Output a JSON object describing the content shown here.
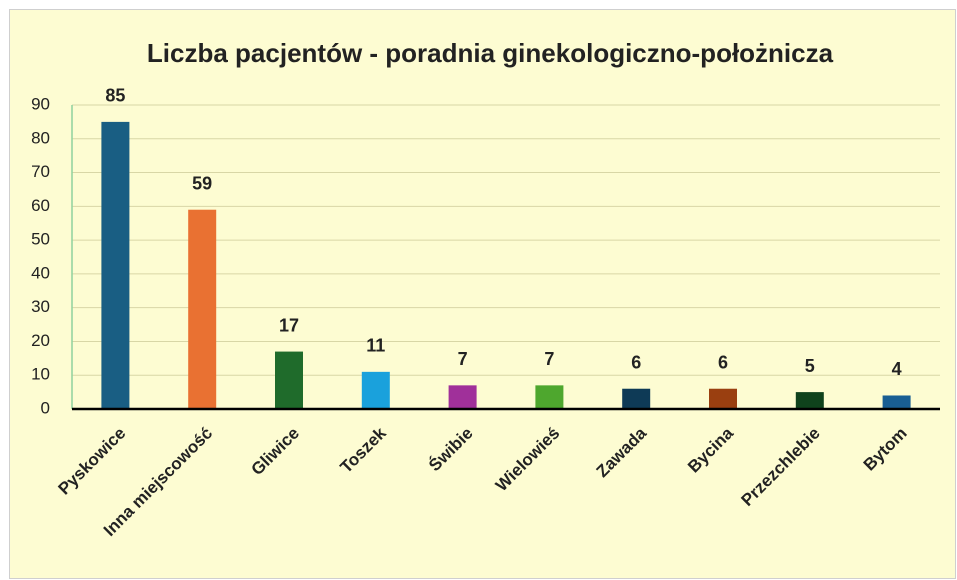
{
  "chart_data": {
    "type": "bar",
    "title": "Liczba pacjentów - poradnia ginekologiczno-położnicza",
    "categories": [
      "Pyskowice",
      "Inna miejscowość",
      "Gliwice",
      "Toszek",
      "Świbie",
      "Wielowieś",
      "Zawada",
      "Bycina",
      "Przezchlebie",
      "Bytom"
    ],
    "values": [
      85,
      59,
      17,
      11,
      7,
      7,
      6,
      6,
      5,
      4
    ],
    "colors": [
      "#195e83",
      "#e97132",
      "#1f6b2b",
      "#1aa1dc",
      "#a0309a",
      "#4ea72e",
      "#0e3a56",
      "#9a3f10",
      "#0f421c",
      "#195e93"
    ],
    "ylim": [
      0,
      90
    ],
    "yticks": [
      0,
      10,
      20,
      30,
      40,
      50,
      60,
      70,
      80,
      90
    ],
    "grid": true
  }
}
